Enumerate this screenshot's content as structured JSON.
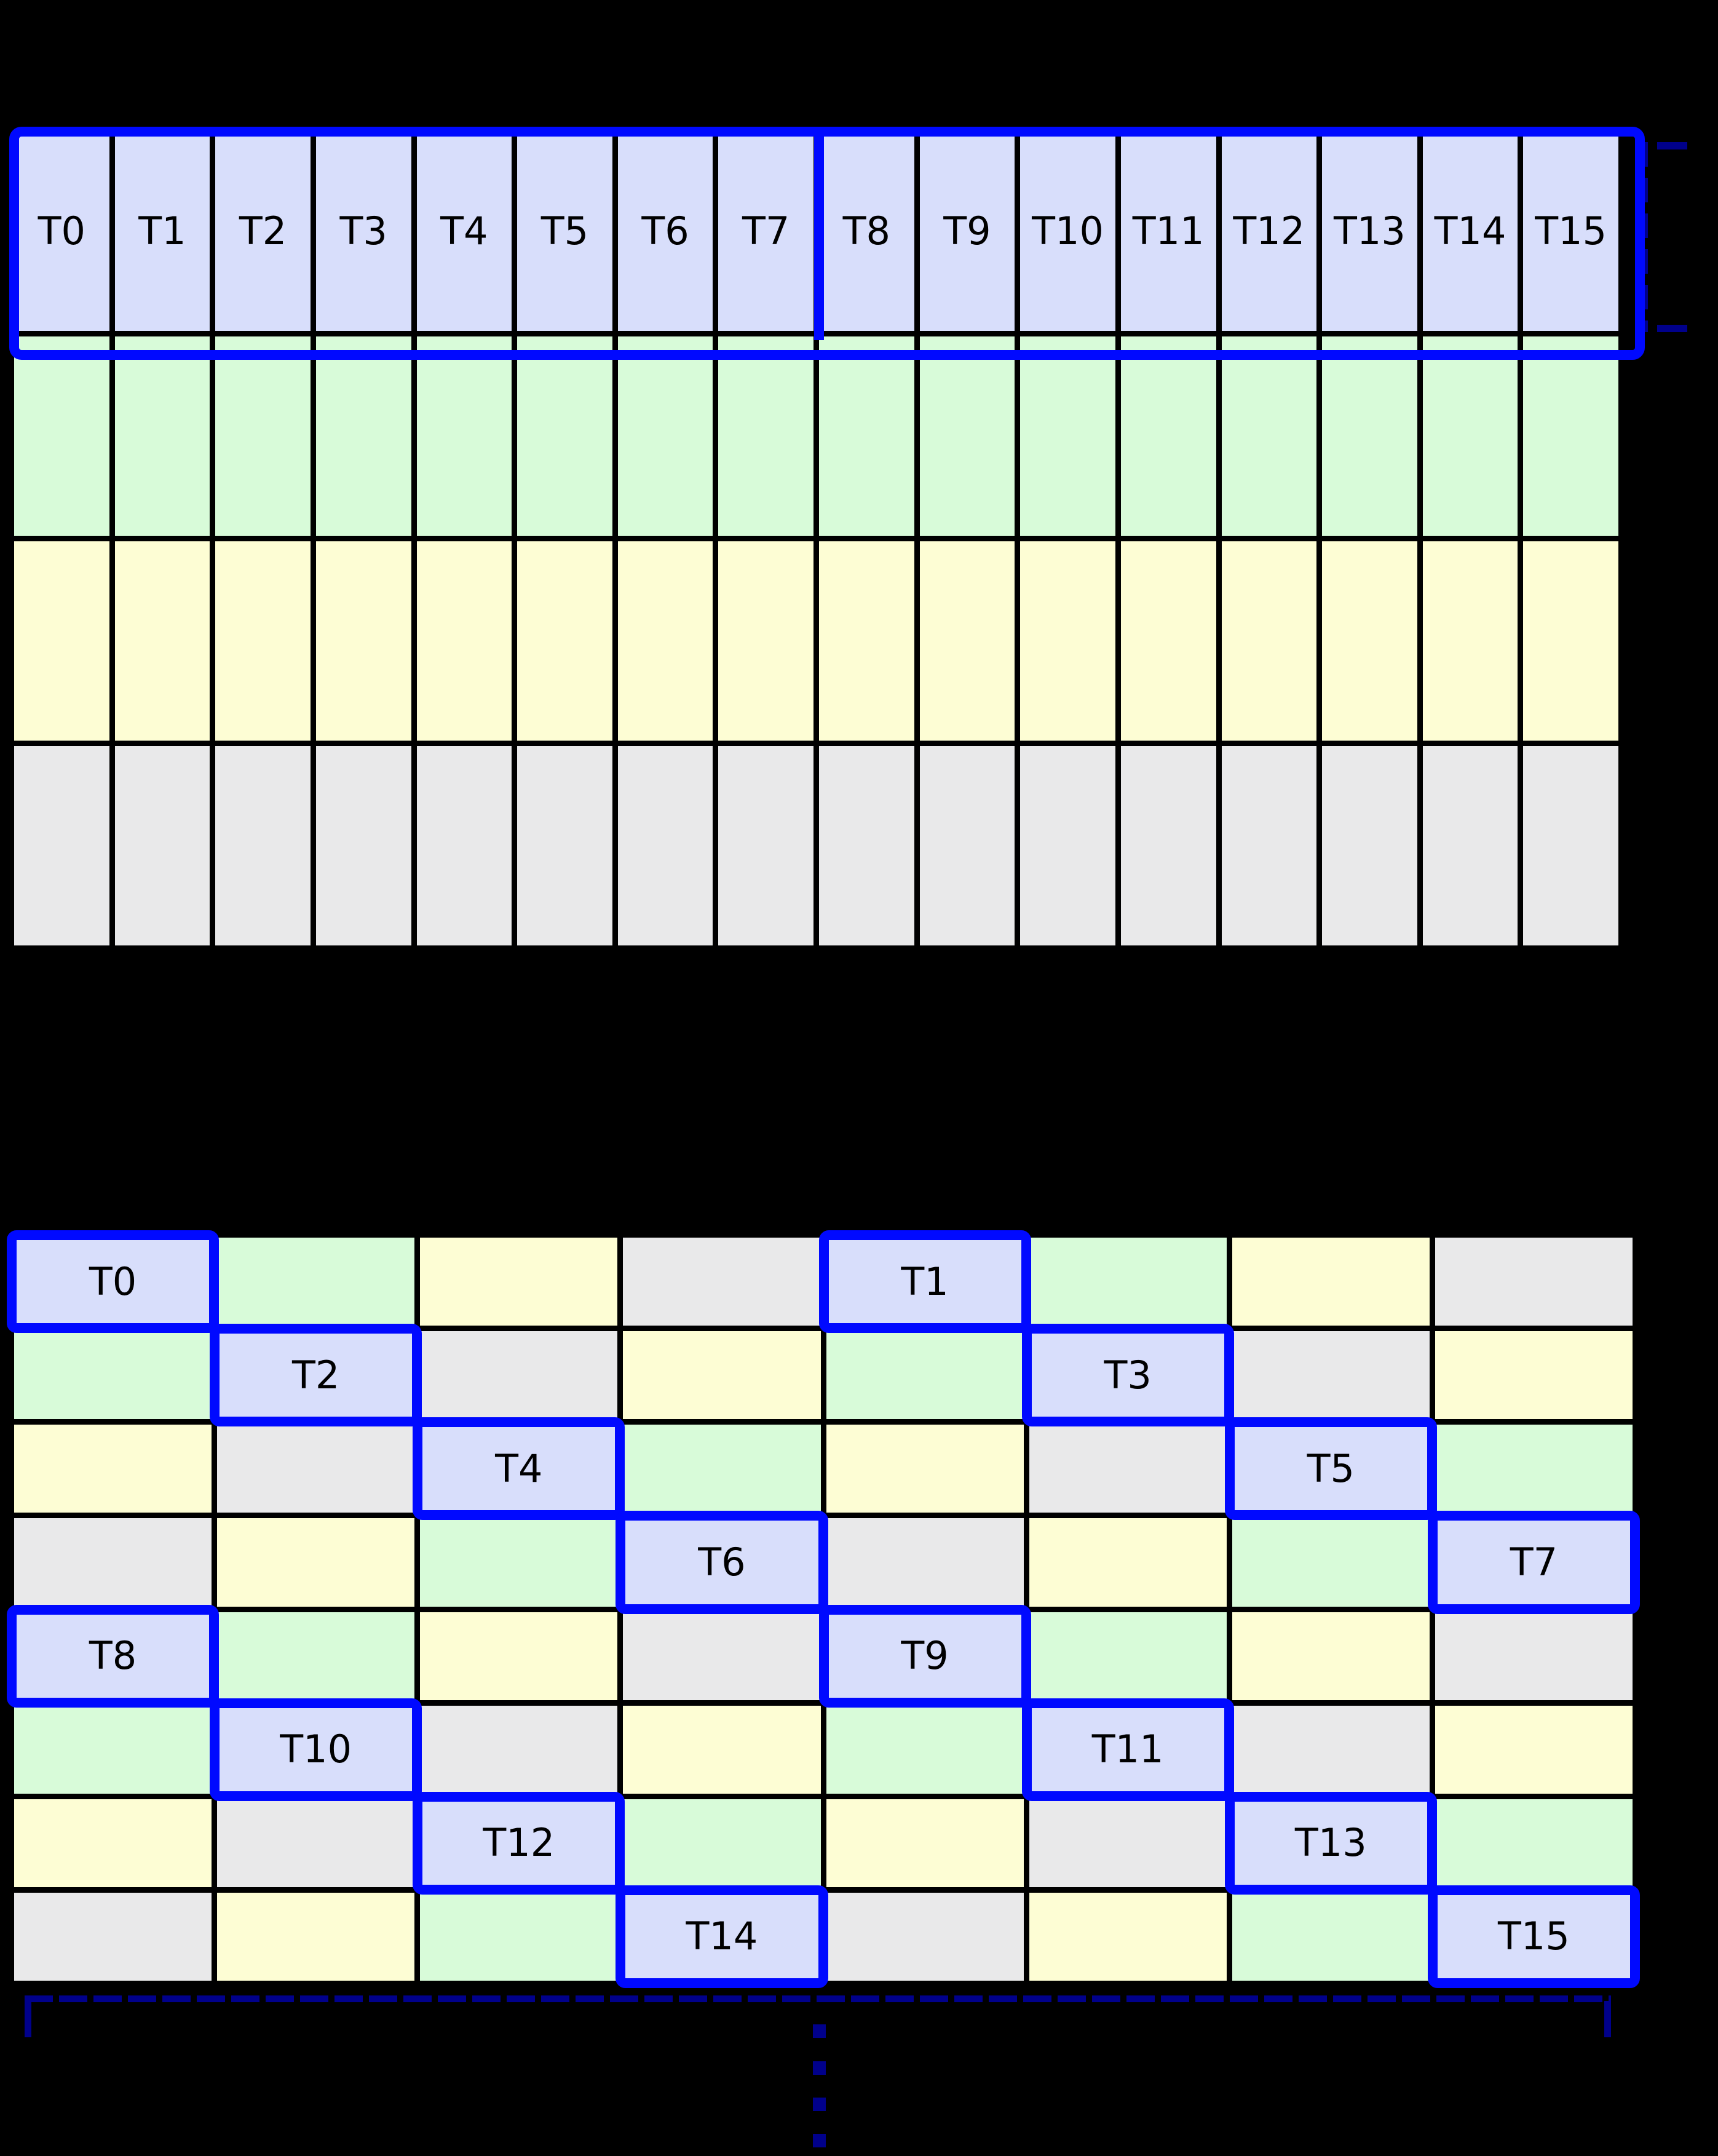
{
  "figure": {
    "background": "#000000"
  },
  "colors": {
    "blue": "#d8defb",
    "green": "#d8fbd9",
    "yellow": "#fdfdd4",
    "gray": "#e9e9ea",
    "outline": "#0009ff",
    "navy": "#00008b",
    "line": "#000000",
    "label_text": "#000000"
  },
  "grid1": {
    "column_labels": [
      "T0",
      "T1",
      "T2",
      "T3",
      "T4",
      "T5",
      "T6",
      "T7",
      "T8",
      "T9",
      "T10",
      "T11",
      "T12",
      "T13",
      "T14",
      "T15"
    ],
    "row_colors": [
      "blue",
      "green",
      "yellow",
      "gray"
    ],
    "labeled_row_index": 0,
    "half_split_after_label": "T7"
  },
  "grid2": {
    "rows": [
      {
        "cells": [
          {
            "color": "blue",
            "label": "T0"
          },
          {
            "color": "green",
            "label": ""
          },
          {
            "color": "yellow",
            "label": ""
          },
          {
            "color": "gray",
            "label": ""
          },
          {
            "color": "blue",
            "label": "T1"
          },
          {
            "color": "green",
            "label": ""
          },
          {
            "color": "yellow",
            "label": ""
          },
          {
            "color": "gray",
            "label": ""
          }
        ]
      },
      {
        "cells": [
          {
            "color": "green",
            "label": ""
          },
          {
            "color": "blue",
            "label": "T2"
          },
          {
            "color": "gray",
            "label": ""
          },
          {
            "color": "yellow",
            "label": ""
          },
          {
            "color": "green",
            "label": ""
          },
          {
            "color": "blue",
            "label": "T3"
          },
          {
            "color": "gray",
            "label": ""
          },
          {
            "color": "yellow",
            "label": ""
          }
        ]
      },
      {
        "cells": [
          {
            "color": "yellow",
            "label": ""
          },
          {
            "color": "gray",
            "label": ""
          },
          {
            "color": "blue",
            "label": "T4"
          },
          {
            "color": "green",
            "label": ""
          },
          {
            "color": "yellow",
            "label": ""
          },
          {
            "color": "gray",
            "label": ""
          },
          {
            "color": "blue",
            "label": "T5"
          },
          {
            "color": "green",
            "label": ""
          }
        ]
      },
      {
        "cells": [
          {
            "color": "gray",
            "label": ""
          },
          {
            "color": "yellow",
            "label": ""
          },
          {
            "color": "green",
            "label": ""
          },
          {
            "color": "blue",
            "label": "T6"
          },
          {
            "color": "gray",
            "label": ""
          },
          {
            "color": "yellow",
            "label": ""
          },
          {
            "color": "green",
            "label": ""
          },
          {
            "color": "blue",
            "label": "T7"
          }
        ]
      },
      {
        "cells": [
          {
            "color": "blue",
            "label": "T8"
          },
          {
            "color": "green",
            "label": ""
          },
          {
            "color": "yellow",
            "label": ""
          },
          {
            "color": "gray",
            "label": ""
          },
          {
            "color": "blue",
            "label": "T9"
          },
          {
            "color": "green",
            "label": ""
          },
          {
            "color": "yellow",
            "label": ""
          },
          {
            "color": "gray",
            "label": ""
          }
        ]
      },
      {
        "cells": [
          {
            "color": "green",
            "label": ""
          },
          {
            "color": "blue",
            "label": "T10"
          },
          {
            "color": "gray",
            "label": ""
          },
          {
            "color": "yellow",
            "label": ""
          },
          {
            "color": "green",
            "label": ""
          },
          {
            "color": "blue",
            "label": "T11"
          },
          {
            "color": "gray",
            "label": ""
          },
          {
            "color": "yellow",
            "label": ""
          }
        ]
      },
      {
        "cells": [
          {
            "color": "yellow",
            "label": ""
          },
          {
            "color": "gray",
            "label": ""
          },
          {
            "color": "blue",
            "label": "T12"
          },
          {
            "color": "green",
            "label": ""
          },
          {
            "color": "yellow",
            "label": ""
          },
          {
            "color": "gray",
            "label": ""
          },
          {
            "color": "blue",
            "label": "T13"
          },
          {
            "color": "green",
            "label": ""
          }
        ]
      },
      {
        "cells": [
          {
            "color": "gray",
            "label": ""
          },
          {
            "color": "yellow",
            "label": ""
          },
          {
            "color": "green",
            "label": ""
          },
          {
            "color": "blue",
            "label": "T14"
          },
          {
            "color": "gray",
            "label": ""
          },
          {
            "color": "yellow",
            "label": ""
          },
          {
            "color": "green",
            "label": ""
          },
          {
            "color": "blue",
            "label": "T15"
          }
        ]
      }
    ]
  },
  "annotations": {
    "row_bracket": {
      "side": "right-of-top-grid",
      "style": "dashed",
      "color": "#00008b"
    },
    "bottom_span_bracket": {
      "side": "below-bottom-grid",
      "style": "dashed",
      "color": "#00008b"
    },
    "continuation_dots": 4
  }
}
